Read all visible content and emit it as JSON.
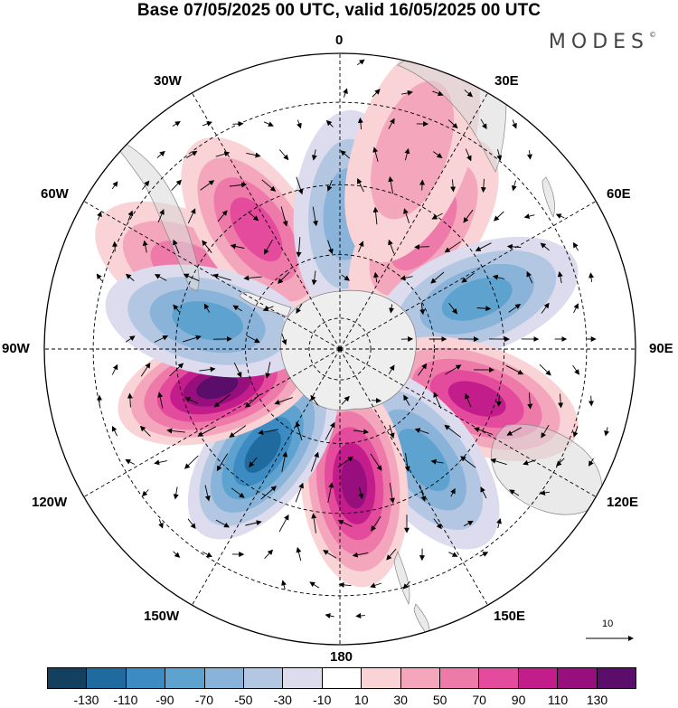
{
  "title": "Base 07/05/2025 00 UTC, valid 16/05/2025 00 UTC",
  "brand": "MODES",
  "brand_mark": "©",
  "longitude_labels": {
    "lon_0": "0",
    "lon_30e": "30E",
    "lon_60e": "60E",
    "lon_90e": "90E",
    "lon_120e": "120E",
    "lon_150e": "150E",
    "lon_180": "180",
    "lon_150w": "150W",
    "lon_120w": "120W",
    "lon_90w": "90W",
    "lon_60w": "60W",
    "lon_30w": "30W"
  },
  "vector_scale_label": "10",
  "legend": {
    "colors": [
      "#13405e",
      "#1f6a9e",
      "#3c8bc2",
      "#5ea2cf",
      "#89b3d8",
      "#b3c7e2",
      "#dcdcee",
      "#ffffff",
      "#f9d3d5",
      "#f4a6bd",
      "#ee7aa9",
      "#e44b9c",
      "#c31d8b",
      "#960f7d",
      "#5b0d6b"
    ],
    "labels": [
      "-130",
      "-110",
      "-90",
      "-70",
      "-50",
      "-30",
      "-10",
      "10",
      "30",
      "50",
      "70",
      "90",
      "110",
      "130"
    ]
  },
  "anomaly_centers": [
    {
      "lon": -62,
      "lat": -40,
      "value": 40
    },
    {
      "lon": -35,
      "lat": -45,
      "value": 75
    },
    {
      "lon": 3,
      "lat": -48,
      "value": -50
    },
    {
      "lon": 35,
      "lat": -45,
      "value": 50
    },
    {
      "lon": 70,
      "lat": -45,
      "value": -60
    },
    {
      "lon": 110,
      "lat": -45,
      "value": 90
    },
    {
      "lon": 143,
      "lat": -47,
      "value": -70
    },
    {
      "lon": 174,
      "lat": -48,
      "value": 105
    },
    {
      "lon": -143,
      "lat": -50,
      "value": -115
    },
    {
      "lon": -107,
      "lat": -50,
      "value": 125
    },
    {
      "lon": -78,
      "lat": -48,
      "value": -70
    },
    {
      "lon": 20,
      "lat": -28,
      "value": 30
    }
  ]
}
